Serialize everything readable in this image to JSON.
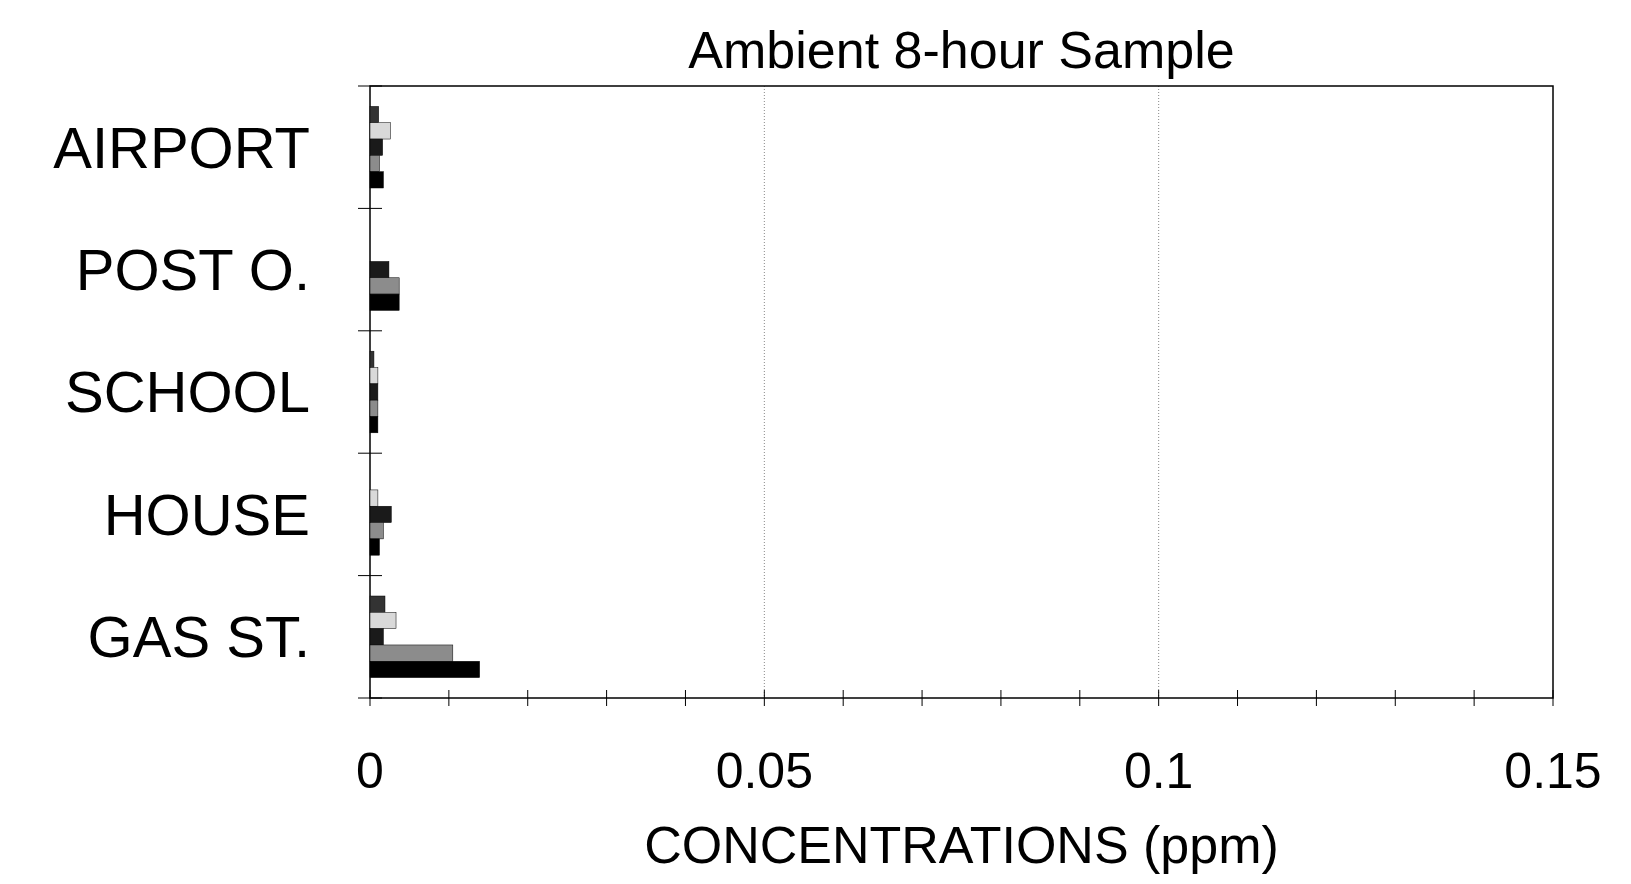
{
  "chart_data": {
    "type": "bar",
    "orientation": "horizontal",
    "title": "Ambient 8-hour Sample",
    "xlabel": "CONCENTRATIONS (ppm)",
    "categories": [
      "AIRPORT",
      "POST O.",
      "SCHOOL",
      "HOUSE",
      "GAS ST."
    ],
    "series": [
      {
        "color": "#333333",
        "values": [
          0.0011,
          0,
          0.0005,
          0,
          0.0019
        ]
      },
      {
        "color": "#d9d9d9",
        "values": [
          0.0026,
          0,
          0.001,
          0.001,
          0.0033
        ]
      },
      {
        "color": "#1a1a1a",
        "values": [
          0.0016,
          0.0024,
          0.001,
          0.0027,
          0.0017
        ]
      },
      {
        "color": "#8c8c8c",
        "values": [
          0.0012,
          0.0037,
          0.001,
          0.0017,
          0.0105
        ]
      },
      {
        "color": "#000000",
        "values": [
          0.0017,
          0.0037,
          0.001,
          0.0012,
          0.0139
        ]
      }
    ],
    "xlim": [
      0,
      0.15
    ],
    "xticks": [
      0,
      {
        "value": 0.01,
        "label": null
      },
      {
        "value": 0.02,
        "label": null
      },
      {
        "value": 0.03,
        "label": null
      },
      {
        "value": 0.04,
        "label": null
      },
      0.05,
      {
        "value": 0.06,
        "label": null
      },
      {
        "value": 0.07,
        "label": null
      },
      {
        "value": 0.08,
        "label": null
      },
      {
        "value": 0.09,
        "label": null
      },
      0.1,
      {
        "value": 0.11,
        "label": null
      },
      {
        "value": 0.12,
        "label": null
      },
      {
        "value": 0.13,
        "label": null
      },
      {
        "value": 0.14,
        "label": null
      },
      0.15
    ],
    "grid": "x"
  }
}
